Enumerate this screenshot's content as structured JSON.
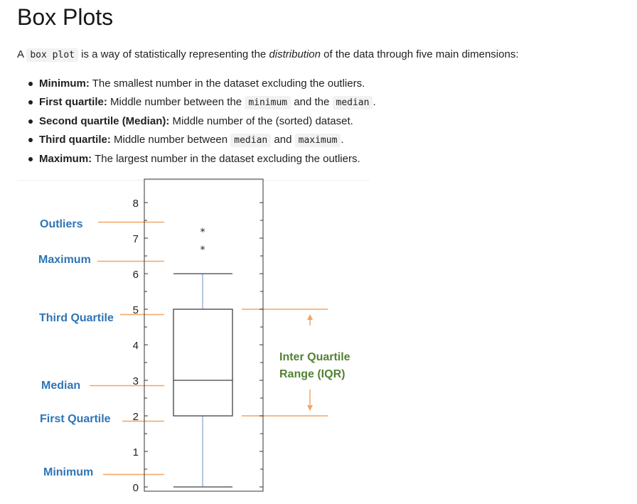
{
  "heading": "Box Plots",
  "intro": {
    "prefix": "A ",
    "code": "box plot",
    "middle": " is a way of statistically representing the ",
    "emphasis": "distribution",
    "suffix": " of the data through five main dimensions:"
  },
  "bullets": [
    {
      "term": "Minimum:",
      "text": " The smallest number in the dataset excluding the outliers."
    },
    {
      "term": "First quartile:",
      "text": " Middle number between the ",
      "code1": "minimum",
      "mid": " and the ",
      "code2": "median",
      "end": "."
    },
    {
      "term": "Second quartile (Median):",
      "text": " Middle number of the (sorted) dataset."
    },
    {
      "term": "Third quartile:",
      "text": " Middle number between ",
      "code1": "median",
      "mid": " and ",
      "code2": "maximum",
      "end": "."
    },
    {
      "term": "Maximum:",
      "text": " The largest number in the dataset excluding the outliers."
    }
  ],
  "diagram": {
    "labels": {
      "outliers": "Outliers",
      "maximum": "Maximum",
      "third_quartile": "Third Quartile",
      "median": "Median",
      "first_quartile": "First Quartile",
      "minimum": "Minimum",
      "iqr_line1": "Inter Quartile",
      "iqr_line2": "Range (IQR)"
    },
    "outlier_marker": "*",
    "colors": {
      "label": "#2e75b6",
      "guide": "#f4a460",
      "iqr_text": "#548235",
      "whisker": "#8fa9d3",
      "box": "#404040"
    }
  },
  "chart_data": {
    "type": "box",
    "ylim": [
      0,
      8.5
    ],
    "yticks": [
      "0",
      "1",
      "2",
      "3",
      "4",
      "5",
      "6",
      "7",
      "8"
    ],
    "minimum": 0,
    "first_quartile": 2,
    "median": 3,
    "third_quartile": 5,
    "maximum": 6,
    "outliers": [
      7.2,
      6.7
    ]
  }
}
